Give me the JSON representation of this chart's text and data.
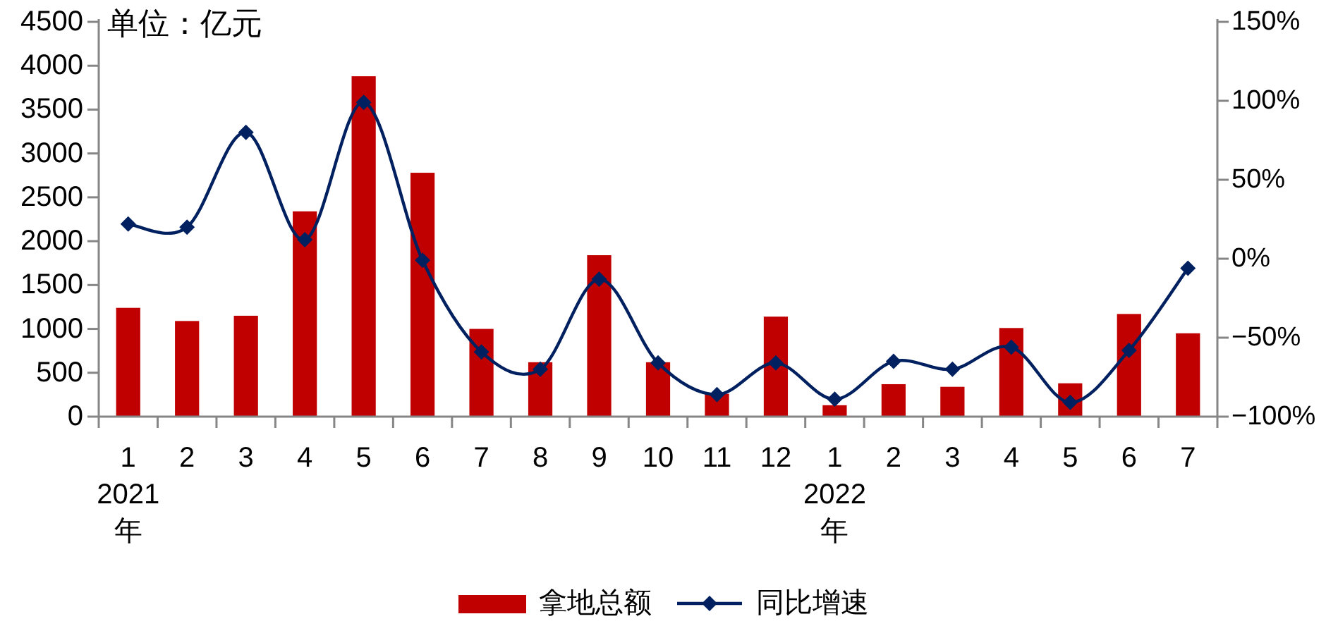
{
  "chart_data": {
    "type": "bar",
    "ylabel": "单位：亿元",
    "categories": [
      "1\n2021年",
      "2",
      "3",
      "4",
      "5",
      "6",
      "7",
      "8",
      "9",
      "10",
      "11",
      "12",
      "1\n2022年",
      "2",
      "3",
      "4",
      "5",
      "6",
      "7"
    ],
    "series": [
      {
        "name": "拿地总额",
        "color": "#c00000",
        "values": [
          1240,
          1090,
          1150,
          2340,
          3880,
          2780,
          1000,
          620,
          1840,
          620,
          260,
          1140,
          130,
          370,
          340,
          1010,
          380,
          1170,
          950
        ]
      },
      {
        "name": "同比增速",
        "type": "line",
        "axis": "y2",
        "color": "#002060",
        "values": [
          22,
          20,
          80,
          12,
          99,
          -1,
          -59,
          -70,
          -13,
          -66,
          -86,
          -66,
          -89,
          -65,
          -70,
          -56,
          -91,
          -58,
          -6
        ]
      }
    ],
    "marker": "diamond",
    "ylim": [
      0,
      4500
    ],
    "yticks": [
      0,
      500,
      1000,
      1500,
      2000,
      2500,
      3000,
      3500,
      4000,
      4500
    ],
    "y2lim": [
      -100,
      150
    ],
    "y2ticks": [
      {
        "value": -100,
        "label": "−100%"
      },
      {
        "value": -50,
        "label": "−50%"
      },
      {
        "value": 0,
        "label": "0%"
      },
      {
        "value": 50,
        "label": "50%"
      },
      {
        "value": 100,
        "label": "100%"
      },
      {
        "value": 150,
        "label": "150%"
      }
    ],
    "legend": "bottom"
  }
}
